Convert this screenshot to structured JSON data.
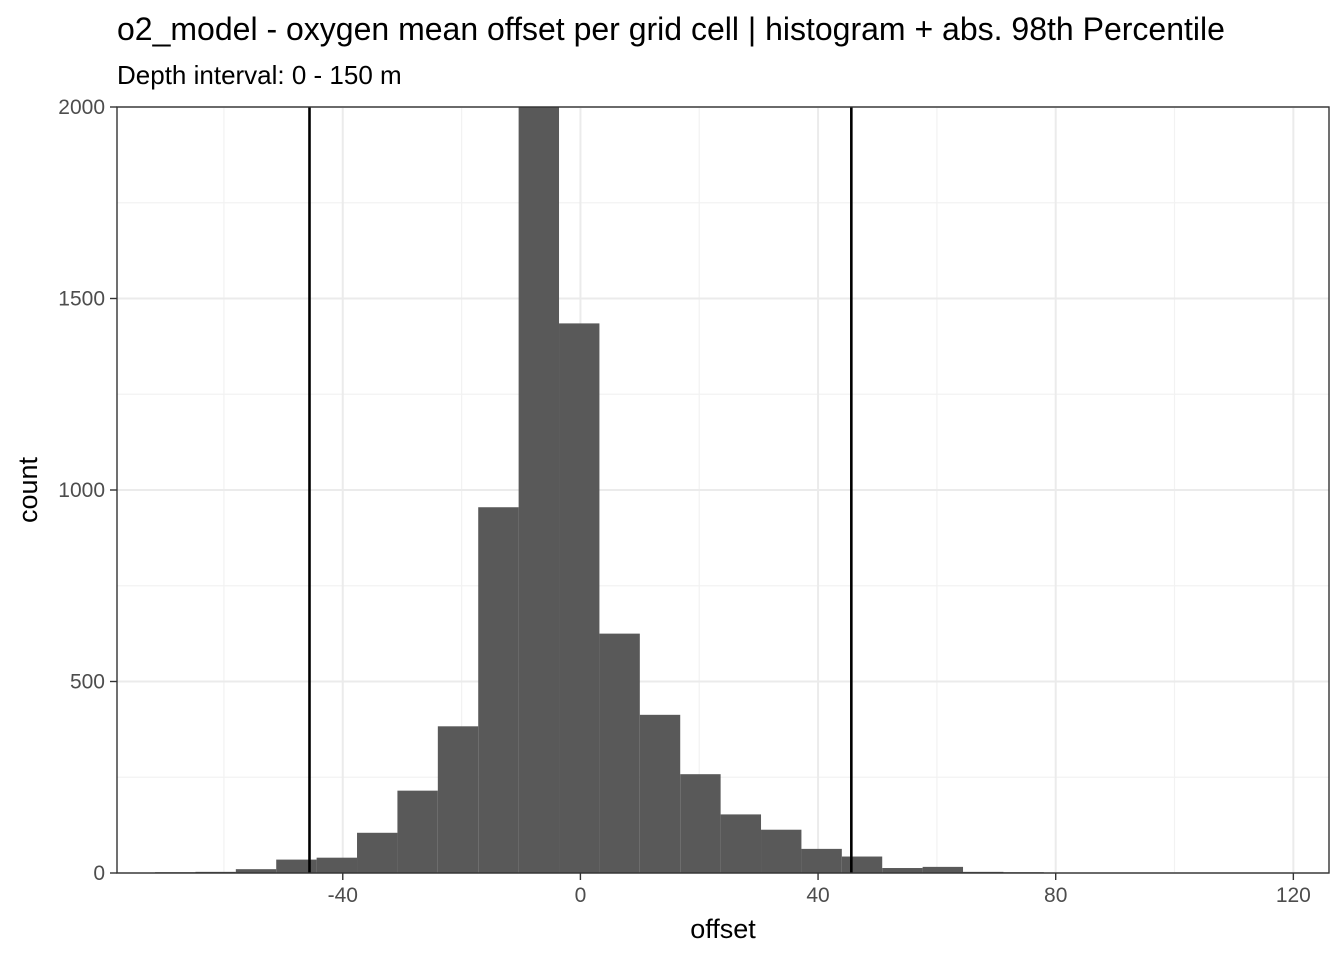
{
  "chart_data": {
    "type": "bar",
    "title": "o2_model  -  oxygen mean offset per grid cell | histogram + abs. 98th Percentile",
    "subtitle": "Depth interval: 0 - 150 m",
    "xlabel": "offset",
    "ylabel": "count",
    "xlim": [
      -78,
      126
    ],
    "ylim": [
      0,
      2000
    ],
    "x_ticks": [
      -40,
      0,
      40,
      80,
      120
    ],
    "x_tick_labels": [
      "-40",
      "0",
      "40",
      "80",
      "120"
    ],
    "y_ticks": [
      0,
      500,
      1000,
      1500,
      2000
    ],
    "y_tick_labels": [
      "0",
      "500",
      "1000",
      "1500",
      "2000"
    ],
    "grid": true,
    "bar_color": "#595959",
    "percentile_lines": [
      -45.6,
      45.6
    ],
    "bins": [
      {
        "x0": -71.6,
        "x1": -64.8,
        "count": 2
      },
      {
        "x0": -64.8,
        "x1": -58.0,
        "count": 3
      },
      {
        "x0": -58.0,
        "x1": -51.2,
        "count": 10
      },
      {
        "x0": -51.2,
        "x1": -44.4,
        "count": 35
      },
      {
        "x0": -44.4,
        "x1": -37.6,
        "count": 40
      },
      {
        "x0": -37.6,
        "x1": -30.8,
        "count": 105
      },
      {
        "x0": -30.8,
        "x1": -24.0,
        "count": 215
      },
      {
        "x0": -24.0,
        "x1": -17.2,
        "count": 383
      },
      {
        "x0": -17.2,
        "x1": -10.4,
        "count": 955
      },
      {
        "x0": -10.4,
        "x1": -3.6,
        "count": 2000
      },
      {
        "x0": -3.6,
        "x1": 3.2,
        "count": 1435
      },
      {
        "x0": 3.2,
        "x1": 10.0,
        "count": 625
      },
      {
        "x0": 10.0,
        "x1": 16.8,
        "count": 413
      },
      {
        "x0": 16.8,
        "x1": 23.6,
        "count": 258
      },
      {
        "x0": 23.6,
        "x1": 30.4,
        "count": 153
      },
      {
        "x0": 30.4,
        "x1": 37.2,
        "count": 113
      },
      {
        "x0": 37.2,
        "x1": 44.0,
        "count": 63
      },
      {
        "x0": 44.0,
        "x1": 50.8,
        "count": 43
      },
      {
        "x0": 50.8,
        "x1": 57.6,
        "count": 13
      },
      {
        "x0": 57.6,
        "x1": 64.4,
        "count": 16
      },
      {
        "x0": 64.4,
        "x1": 71.2,
        "count": 3
      },
      {
        "x0": 71.2,
        "x1": 78.0,
        "count": 2
      },
      {
        "x0": 78.0,
        "x1": 84.8,
        "count": 1
      },
      {
        "x0": 84.8,
        "x1": 91.6,
        "count": 1
      },
      {
        "x0": 91.6,
        "x1": 98.4,
        "count": 1
      },
      {
        "x0": 98.4,
        "x1": 105.2,
        "count": 1
      },
      {
        "x0": 105.2,
        "x1": 112.0,
        "count": 1
      },
      {
        "x0": 112.0,
        "x1": 118.8,
        "count": 1
      }
    ]
  }
}
